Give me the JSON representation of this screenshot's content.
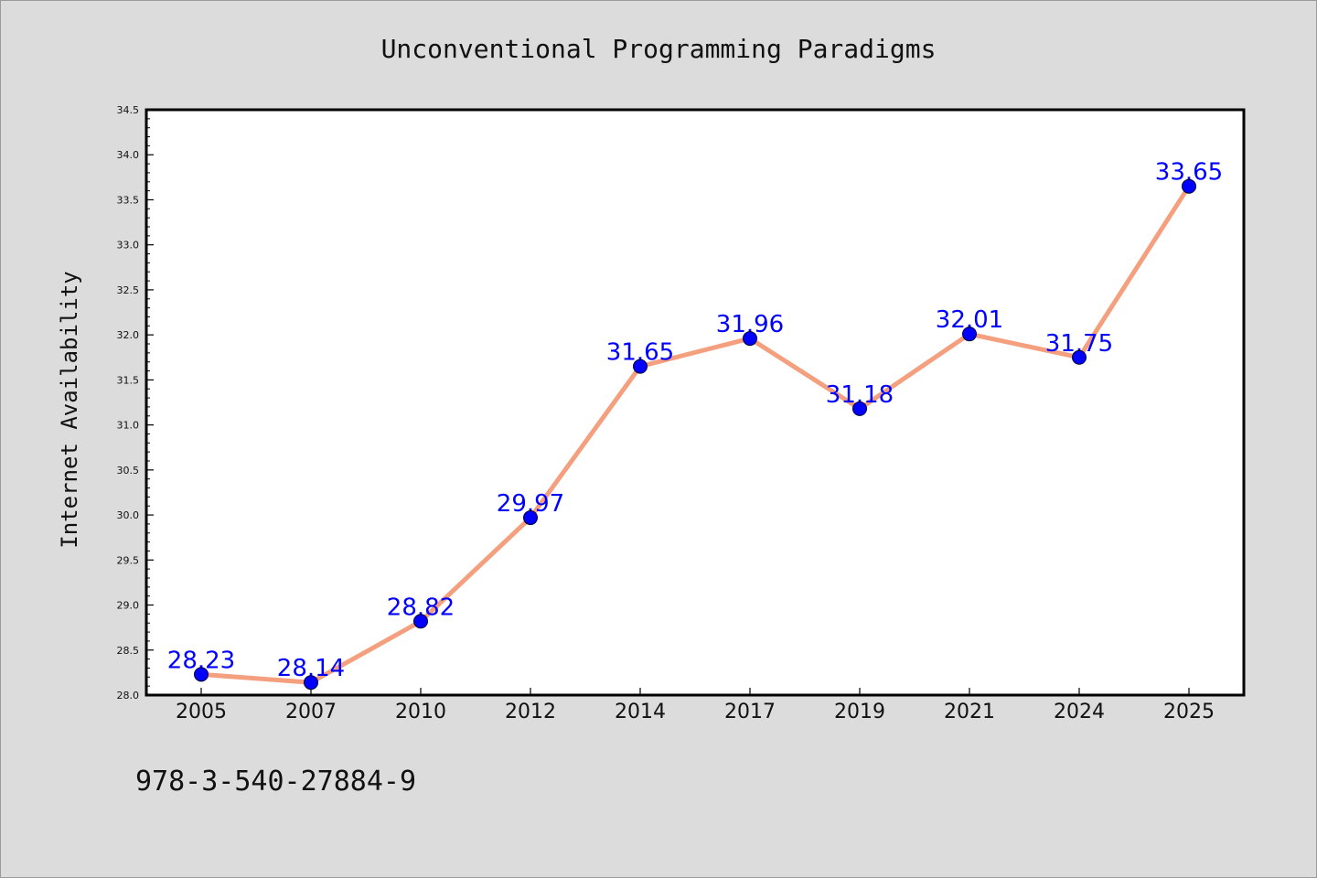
{
  "chart_data": {
    "type": "line",
    "title": "Unconventional Programming Paradigms",
    "xlabel": "",
    "ylabel": "Internet Availability",
    "categories": [
      "2005",
      "2007",
      "2010",
      "2012",
      "2014",
      "2017",
      "2019",
      "2021",
      "2024",
      "2025"
    ],
    "series": [
      {
        "values": [
          28.23,
          28.14,
          28.82,
          29.97,
          31.65,
          31.96,
          31.18,
          32.01,
          31.75,
          33.65
        ],
        "data_labels": [
          "28.23",
          "28.14",
          "28.82",
          "29.97",
          "31.65",
          "31.96",
          "31.18",
          "32.01",
          "31.75",
          "33.65"
        ]
      }
    ],
    "ylim": [
      28.0,
      34.5
    ],
    "y_ticks": [
      "28.0",
      "28.5",
      "29.0",
      "29.5",
      "30.0",
      "30.5",
      "31.0",
      "31.5",
      "32.0",
      "32.5",
      "33.0",
      "33.5",
      "34.0",
      "34.5"
    ],
    "grid": false,
    "legend": "none",
    "colors": {
      "line": "#f4a07e",
      "marker": "#0000ff",
      "data_label": "#0000ff",
      "background": "#dcdcdc",
      "plot_area": "#ffffff"
    }
  },
  "footnote": "978-3-540-27884-9"
}
